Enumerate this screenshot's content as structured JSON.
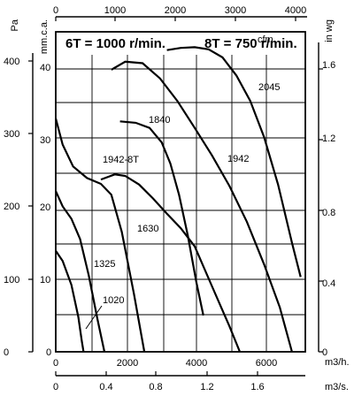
{
  "chart_data": {
    "type": "line",
    "title_left": "6T = 1000 r/min.",
    "title_right": "8T = 750 r/min.",
    "units": {
      "pa": "Pa",
      "mmca": "mm.c.a.",
      "inwg": "in wg",
      "cfm": "cfm",
      "m3h": "m3/h.",
      "m3s": "m3/s."
    },
    "axes": {
      "x_m3h": {
        "range": [
          0,
          7100
        ],
        "ticks": [
          "0",
          "2000",
          "4000",
          "6000"
        ]
      },
      "x_m3s": {
        "ticks": [
          "0",
          "0.4",
          "0.8",
          "1.2",
          "1.6"
        ]
      },
      "x_cfm": {
        "ticks": [
          "0",
          "1000",
          "2000",
          "3000",
          "4000"
        ]
      },
      "y_pa": {
        "range": [
          0,
          440
        ],
        "ticks": [
          "0",
          "100",
          "200",
          "300",
          "400"
        ]
      },
      "y_mmca": {
        "ticks": [
          "0",
          "10",
          "20",
          "30",
          "40"
        ]
      },
      "y_inwg": {
        "ticks": [
          "0",
          "0.4",
          "0.8",
          "1.2",
          "1.6"
        ]
      }
    },
    "grid": "vertical and horizontal reference lines",
    "series": [
      {
        "name": "1020",
        "x": [
          0,
          200,
          450,
          650,
          750,
          800
        ],
        "y": [
          139,
          125,
          92,
          48,
          15,
          0
        ]
      },
      {
        "name": "1325",
        "x": [
          0,
          200,
          450,
          700,
          950,
          1200,
          1400
        ],
        "y": [
          221,
          200,
          183,
          155,
          105,
          45,
          0
        ]
      },
      {
        "name": "1630",
        "x": [
          0,
          200,
          500,
          900,
          1300,
          1600,
          1900,
          2250,
          2550
        ],
        "y": [
          321,
          285,
          255,
          239,
          231,
          216,
          165,
          80,
          0
        ]
      },
      {
        "name": "1942-8T",
        "x": [
          1300,
          1700,
          2000,
          2400,
          2800,
          3200,
          3600,
          4000,
          4500,
          5000,
          5300
        ],
        "y": [
          237,
          244,
          242,
          230,
          211,
          190,
          170,
          145,
          90,
          35,
          0
        ]
      },
      {
        "name": "1840",
        "x": [
          1850,
          2300,
          2700,
          3050,
          3300,
          3550,
          3800,
          4050,
          4250
        ],
        "y": [
          317,
          315,
          308,
          288,
          259,
          216,
          160,
          95,
          50
        ]
      },
      {
        "name": "1942",
        "x": [
          1600,
          2000,
          2500,
          3000,
          3500,
          4000,
          4500,
          5000,
          5500,
          6000,
          6450,
          6800
        ],
        "y": [
          388,
          399,
          397,
          376,
          345,
          308,
          270,
          228,
          179,
          120,
          61,
          0
        ]
      },
      {
        "name": "2045",
        "x": [
          3200,
          3600,
          4000,
          4400,
          4800,
          5200,
          5600,
          6000,
          6400,
          6800,
          7050
        ],
        "y": [
          415,
          418,
          419,
          416,
          405,
          380,
          345,
          295,
          230,
          150,
          103
        ]
      }
    ]
  }
}
